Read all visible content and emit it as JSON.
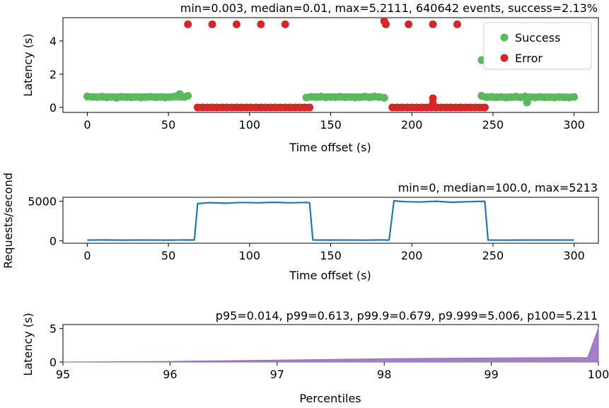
{
  "chart_data": [
    {
      "type": "scatter",
      "title": "min=0.003, median=0.01, max=5.2111, 640642 events, success=2.13%",
      "xlabel": "Time offset (s)",
      "ylabel": "Latency (s)",
      "xlim": [
        -15,
        315
      ],
      "ylim": [
        -0.3,
        5.4
      ],
      "xticks": [
        0,
        50,
        100,
        150,
        200,
        250,
        300
      ],
      "yticks": [
        0,
        2,
        4
      ],
      "legend": {
        "placement": "top-right"
      },
      "series": [
        {
          "name": "Success",
          "color": "#5cb85c",
          "points": [
            [
              0,
              0.66
            ],
            [
              3,
              0.63
            ],
            [
              6,
              0.62
            ],
            [
              9,
              0.65
            ],
            [
              12,
              0.61
            ],
            [
              15,
              0.63
            ],
            [
              18,
              0.58
            ],
            [
              21,
              0.64
            ],
            [
              24,
              0.62
            ],
            [
              27,
              0.61
            ],
            [
              30,
              0.63
            ],
            [
              33,
              0.6
            ],
            [
              36,
              0.62
            ],
            [
              39,
              0.64
            ],
            [
              42,
              0.61
            ],
            [
              45,
              0.63
            ],
            [
              48,
              0.6
            ],
            [
              51,
              0.62
            ],
            [
              54,
              0.67
            ],
            [
              57,
              0.8
            ],
            [
              60,
              0.63
            ],
            [
              62,
              0.7
            ],
            [
              135,
              0.6
            ],
            [
              138,
              0.64
            ],
            [
              141,
              0.62
            ],
            [
              144,
              0.65
            ],
            [
              147,
              0.61
            ],
            [
              150,
              0.63
            ],
            [
              153,
              0.62
            ],
            [
              156,
              0.64
            ],
            [
              159,
              0.61
            ],
            [
              162,
              0.63
            ],
            [
              165,
              0.6
            ],
            [
              168,
              0.62
            ],
            [
              171,
              0.65
            ],
            [
              174,
              0.61
            ],
            [
              177,
              0.66
            ],
            [
              180,
              0.62
            ],
            [
              183,
              0.58
            ],
            [
              243,
              0.7
            ],
            [
              246,
              0.62
            ],
            [
              249,
              0.64
            ],
            [
              252,
              0.61
            ],
            [
              255,
              0.63
            ],
            [
              258,
              0.6
            ],
            [
              261,
              0.62
            ],
            [
              264,
              0.65
            ],
            [
              267,
              0.61
            ],
            [
              270,
              0.66
            ],
            [
              271,
              0.3
            ],
            [
              273,
              0.62
            ],
            [
              276,
              0.6
            ],
            [
              279,
              0.63
            ],
            [
              282,
              0.61
            ],
            [
              285,
              0.62
            ],
            [
              288,
              0.6
            ],
            [
              291,
              0.63
            ],
            [
              294,
              0.61
            ],
            [
              297,
              0.6
            ],
            [
              300,
              0.63
            ],
            [
              243,
              2.85
            ]
          ]
        },
        {
          "name": "Error",
          "color": "#d62728",
          "points": [
            [
              62,
              5.0
            ],
            [
              77,
              5.0
            ],
            [
              92,
              5.0
            ],
            [
              107,
              5.0
            ],
            [
              122,
              5.0
            ],
            [
              183,
              5.2
            ],
            [
              184,
              5.0
            ],
            [
              198,
              5.0
            ],
            [
              213,
              5.0
            ],
            [
              228,
              5.0
            ],
            [
              213,
              0.55
            ],
            [
              213,
              0.25
            ],
            [
              68,
              0
            ],
            [
              71,
              0
            ],
            [
              74,
              0
            ],
            [
              77,
              0
            ],
            [
              80,
              0
            ],
            [
              83,
              0
            ],
            [
              86,
              0
            ],
            [
              89,
              0
            ],
            [
              92,
              0
            ],
            [
              95,
              0
            ],
            [
              98,
              0
            ],
            [
              101,
              0
            ],
            [
              104,
              0
            ],
            [
              107,
              0
            ],
            [
              110,
              0
            ],
            [
              113,
              0
            ],
            [
              116,
              0
            ],
            [
              119,
              0
            ],
            [
              122,
              0
            ],
            [
              125,
              0
            ],
            [
              128,
              0
            ],
            [
              131,
              0
            ],
            [
              134,
              0
            ],
            [
              137,
              0
            ],
            [
              188,
              0
            ],
            [
              191,
              0
            ],
            [
              194,
              0
            ],
            [
              197,
              0
            ],
            [
              200,
              0
            ],
            [
              203,
              0
            ],
            [
              206,
              0
            ],
            [
              209,
              0
            ],
            [
              212,
              0
            ],
            [
              215,
              0
            ],
            [
              218,
              0
            ],
            [
              221,
              0
            ],
            [
              224,
              0
            ],
            [
              227,
              0
            ],
            [
              230,
              0
            ],
            [
              233,
              0
            ],
            [
              236,
              0
            ],
            [
              239,
              0
            ],
            [
              242,
              0
            ],
            [
              245,
              0
            ]
          ]
        }
      ]
    },
    {
      "type": "line",
      "title": "min=0, median=100.0, max=5213",
      "xlabel": "Time offset (s)",
      "ylabel": "Requests/second",
      "xlim": [
        -15,
        315
      ],
      "ylim": [
        -300,
        5500
      ],
      "xticks": [
        0,
        50,
        100,
        150,
        200,
        250,
        300
      ],
      "yticks": [
        0,
        5000
      ],
      "series": [
        {
          "color": "#1f77b4",
          "points": [
            [
              0,
              100
            ],
            [
              10,
              110
            ],
            [
              20,
              90
            ],
            [
              30,
              105
            ],
            [
              40,
              100
            ],
            [
              50,
              95
            ],
            [
              60,
              110
            ],
            [
              66,
              100
            ],
            [
              68,
              4700
            ],
            [
              75,
              4820
            ],
            [
              85,
              4750
            ],
            [
              95,
              4850
            ],
            [
              105,
              4800
            ],
            [
              115,
              4870
            ],
            [
              125,
              4800
            ],
            [
              135,
              4850
            ],
            [
              137,
              4800
            ],
            [
              139,
              100
            ],
            [
              150,
              105
            ],
            [
              160,
              100
            ],
            [
              170,
              95
            ],
            [
              180,
              110
            ],
            [
              186,
              100
            ],
            [
              189,
              5050
            ],
            [
              195,
              4950
            ],
            [
              205,
              4900
            ],
            [
              215,
              5000
            ],
            [
              225,
              4870
            ],
            [
              235,
              4950
            ],
            [
              245,
              5000
            ],
            [
              247,
              100
            ],
            [
              260,
              95
            ],
            [
              270,
              100
            ],
            [
              280,
              105
            ],
            [
              290,
              100
            ],
            [
              300,
              100
            ]
          ]
        }
      ]
    },
    {
      "type": "area",
      "title": "p95=0.014, p99=0.613, p99.9=0.679, p9.999=5.006, p100=5.211",
      "xlabel": "Percentiles",
      "ylabel": "Latency (s)",
      "xlim": [
        95,
        100
      ],
      "ylim": [
        0,
        5.6
      ],
      "xticks": [
        95,
        96,
        97,
        98,
        99,
        100
      ],
      "yticks": [
        0,
        5
      ],
      "series": [
        {
          "color": "#9467bd",
          "points": [
            [
              95,
              0.014
            ],
            [
              96,
              0.1
            ],
            [
              97,
              0.3
            ],
            [
              98,
              0.5
            ],
            [
              99,
              0.613
            ],
            [
              99.9,
              0.679
            ],
            [
              99.999,
              5.006
            ],
            [
              100,
              5.211
            ]
          ]
        }
      ]
    }
  ]
}
